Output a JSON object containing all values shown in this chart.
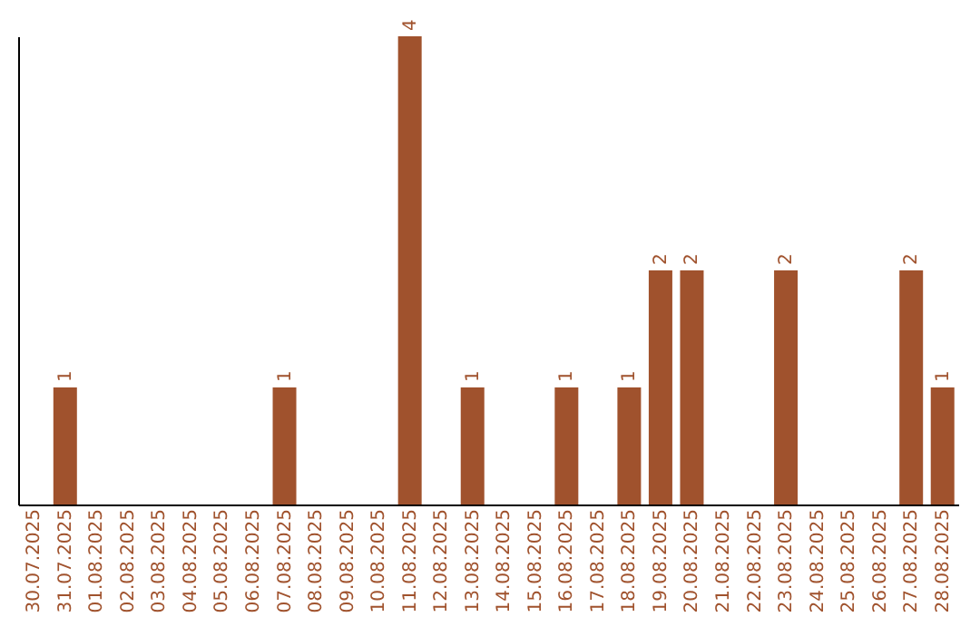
{
  "chart_data": {
    "type": "bar",
    "categories": [
      "30.07.2025",
      "31.07.2025",
      "01.08.2025",
      "02.08.2025",
      "03.08.2025",
      "04.08.2025",
      "05.08.2025",
      "06.08.2025",
      "07.08.2025",
      "08.08.2025",
      "09.08.2025",
      "10.08.2025",
      "11.08.2025",
      "12.08.2025",
      "13.08.2025",
      "14.08.2025",
      "15.08.2025",
      "16.08.2025",
      "17.08.2025",
      "18.08.2025",
      "19.08.2025",
      "20.08.2025",
      "21.08.2025",
      "22.08.2025",
      "23.08.2025",
      "24.08.2025",
      "25.08.2025",
      "26.08.2025",
      "27.08.2025",
      "28.08.2025"
    ],
    "values": [
      0,
      1,
      0,
      0,
      0,
      0,
      0,
      0,
      1,
      0,
      0,
      0,
      4,
      0,
      1,
      0,
      0,
      1,
      0,
      1,
      2,
      2,
      0,
      0,
      2,
      0,
      0,
      0,
      2,
      1
    ],
    "value_labels": [
      null,
      "1",
      null,
      null,
      null,
      null,
      null,
      null,
      "1",
      null,
      null,
      null,
      "4",
      null,
      "1",
      null,
      null,
      "1",
      null,
      "1",
      "2",
      "2",
      null,
      null,
      "2",
      null,
      null,
      null,
      "2",
      "1"
    ],
    "color": "#a0522d",
    "tick_labels": "x",
    "grid": false
  }
}
